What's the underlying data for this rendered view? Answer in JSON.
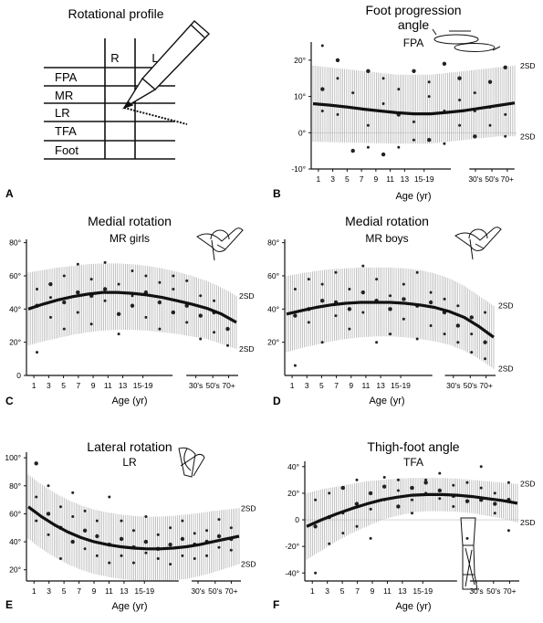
{
  "colors": {
    "ink": "#111111",
    "band": "#9a9a9a",
    "dot": "#222222"
  },
  "table": {
    "title": "Rotational profile",
    "label": "A",
    "cols": [
      "R",
      "L"
    ],
    "rows": [
      "FPA",
      "MR",
      "LR",
      "TFA",
      "Foot"
    ],
    "icon": "pencil-icon"
  },
  "chart_data": [
    {
      "type": "scatter",
      "label": "B",
      "title": "Foot progression\nangle",
      "subtitle": "FPA",
      "icon": "feet-progression-icon",
      "xlabel": "Age (yr)",
      "xticks": [
        "1",
        "3",
        "5",
        "7",
        "9",
        "11",
        "13",
        "15-19",
        "30's",
        "50's",
        "70+"
      ],
      "yticks": [
        "-10°",
        "0°",
        "10°",
        "20°"
      ],
      "ytick_values": [
        -10,
        0,
        10,
        20
      ],
      "ylim": [
        -10,
        25
      ],
      "sd_labels": [
        "2SD",
        "2SD"
      ],
      "mean": [
        8,
        7.6,
        7.1,
        6.5,
        6,
        5.5,
        5.2,
        5.2,
        5.6,
        6.1,
        6.8,
        7.5,
        8.2
      ],
      "band_upper": [
        18.5,
        18,
        17.5,
        17,
        16.5,
        16,
        16,
        16,
        16.5,
        17,
        17.5,
        18,
        18.5
      ],
      "band_lower": [
        -2.5,
        -2.6,
        -2.7,
        -2.8,
        -2.9,
        -3,
        -3,
        -3,
        -2.5,
        -2,
        -1.5,
        -1,
        -1
      ],
      "points": [
        [
          0,
          12
        ],
        [
          0,
          24
        ],
        [
          0,
          6
        ],
        [
          1,
          20
        ],
        [
          1,
          15
        ],
        [
          1,
          5
        ],
        [
          2,
          -5
        ],
        [
          2,
          11
        ],
        [
          3,
          -4
        ],
        [
          3,
          17
        ],
        [
          3,
          2
        ],
        [
          4,
          8
        ],
        [
          4,
          -6
        ],
        [
          4,
          15
        ],
        [
          5,
          12
        ],
        [
          5,
          5
        ],
        [
          5,
          -4
        ],
        [
          6,
          3
        ],
        [
          6,
          17
        ],
        [
          6,
          -2
        ],
        [
          7,
          10
        ],
        [
          7,
          -2
        ],
        [
          7,
          14
        ],
        [
          8,
          6
        ],
        [
          8,
          19
        ],
        [
          8,
          -3
        ],
        [
          9,
          9
        ],
        [
          9,
          15
        ],
        [
          9,
          2
        ],
        [
          10,
          6
        ],
        [
          10,
          -1
        ],
        [
          10,
          11
        ],
        [
          11,
          7
        ],
        [
          11,
          14
        ],
        [
          11,
          2
        ],
        [
          12,
          5
        ],
        [
          12,
          18
        ],
        [
          12,
          -1
        ]
      ]
    },
    {
      "type": "scatter",
      "label": "C",
      "title": "Medial rotation",
      "subtitle": "MR girls",
      "icon": "hip-medial-rotation-icon",
      "xlabel": "Age (yr)",
      "xticks": [
        "1",
        "3",
        "5",
        "7",
        "9",
        "11",
        "13",
        "15-19",
        "30's",
        "50's",
        "70+"
      ],
      "yticks": [
        "0",
        "20°",
        "40°",
        "60°",
        "80°"
      ],
      "ytick_values": [
        0,
        20,
        40,
        60,
        80
      ],
      "ylim": [
        0,
        82
      ],
      "sd_labels": [
        "2SD",
        "2SD"
      ],
      "mean": [
        40,
        43,
        45.5,
        47.5,
        49,
        50,
        50,
        49.5,
        48.5,
        47,
        45,
        43,
        40.5,
        37,
        32
      ],
      "band_upper": [
        62,
        63.5,
        65,
        66,
        67,
        67.5,
        67.5,
        67,
        66,
        64.5,
        62.5,
        60,
        57,
        53,
        48
      ],
      "band_lower": [
        18,
        20.5,
        22.5,
        24.5,
        26,
        27,
        27.5,
        27.5,
        27,
        26,
        25,
        23.5,
        22,
        19,
        16
      ],
      "points": [
        [
          0,
          42
        ],
        [
          0,
          14
        ],
        [
          0,
          52
        ],
        [
          1,
          55
        ],
        [
          1,
          35
        ],
        [
          1,
          47
        ],
        [
          2,
          44
        ],
        [
          2,
          28
        ],
        [
          2,
          60
        ],
        [
          3,
          50
        ],
        [
          3,
          38
        ],
        [
          3,
          67
        ],
        [
          4,
          48
        ],
        [
          4,
          31
        ],
        [
          4,
          58
        ],
        [
          5,
          52
        ],
        [
          5,
          45
        ],
        [
          5,
          68
        ],
        [
          6,
          37
        ],
        [
          6,
          55
        ],
        [
          6,
          25
        ],
        [
          7,
          42
        ],
        [
          7,
          48
        ],
        [
          7,
          63
        ],
        [
          8,
          50
        ],
        [
          8,
          35
        ],
        [
          8,
          60
        ],
        [
          9,
          44
        ],
        [
          9,
          28
        ],
        [
          9,
          56
        ],
        [
          10,
          38
        ],
        [
          10,
          52
        ],
        [
          10,
          60
        ],
        [
          11,
          42
        ],
        [
          11,
          32
        ],
        [
          11,
          57
        ],
        [
          12,
          36
        ],
        [
          12,
          48
        ],
        [
          12,
          22
        ],
        [
          13,
          38
        ],
        [
          13,
          26
        ],
        [
          13,
          45
        ],
        [
          14,
          28
        ],
        [
          14,
          35
        ],
        [
          14,
          18
        ]
      ]
    },
    {
      "type": "scatter",
      "label": "D",
      "title": "Medial rotation",
      "subtitle": "MR boys",
      "icon": "hip-medial-rotation-icon",
      "xlabel": "Age (yr)",
      "xticks": [
        "1",
        "3",
        "5",
        "7",
        "9",
        "11",
        "13",
        "15-19",
        "30's",
        "50's",
        "70+"
      ],
      "yticks": [
        "20°",
        "40°",
        "60°",
        "80°"
      ],
      "ytick_values": [
        20,
        40,
        60,
        80
      ],
      "ylim": [
        0,
        82
      ],
      "sd_labels": [
        "2SD",
        "2SD"
      ],
      "mean": [
        37,
        39,
        41,
        42.5,
        43.5,
        44,
        44,
        44,
        43.5,
        42.5,
        41,
        38.5,
        35,
        29.5,
        23
      ],
      "band_upper": [
        60,
        61.5,
        63,
        64,
        64.5,
        65,
        65,
        65,
        64.5,
        63.5,
        61.5,
        58.5,
        54,
        48,
        42
      ],
      "band_lower": [
        14,
        16.5,
        18.5,
        20.5,
        22,
        23,
        23.5,
        23.5,
        23,
        22,
        20.5,
        18.5,
        15,
        10,
        4
      ],
      "points": [
        [
          0,
          36
        ],
        [
          0,
          6
        ],
        [
          0,
          52
        ],
        [
          1,
          40
        ],
        [
          1,
          32
        ],
        [
          1,
          58
        ],
        [
          2,
          45
        ],
        [
          2,
          20
        ],
        [
          2,
          55
        ],
        [
          3,
          44
        ],
        [
          3,
          36
        ],
        [
          3,
          62
        ],
        [
          4,
          40
        ],
        [
          4,
          28
        ],
        [
          4,
          52
        ],
        [
          5,
          50
        ],
        [
          5,
          38
        ],
        [
          5,
          66
        ],
        [
          6,
          45
        ],
        [
          6,
          20
        ],
        [
          6,
          58
        ],
        [
          7,
          40
        ],
        [
          7,
          48
        ],
        [
          7,
          25
        ],
        [
          8,
          46
        ],
        [
          8,
          34
        ],
        [
          8,
          55
        ],
        [
          9,
          42
        ],
        [
          9,
          22
        ],
        [
          9,
          62
        ],
        [
          10,
          44
        ],
        [
          10,
          30
        ],
        [
          10,
          50
        ],
        [
          11,
          38
        ],
        [
          11,
          46
        ],
        [
          11,
          25
        ],
        [
          12,
          30
        ],
        [
          12,
          42
        ],
        [
          12,
          20
        ],
        [
          13,
          35
        ],
        [
          13,
          14
        ],
        [
          13,
          25
        ],
        [
          14,
          20
        ],
        [
          14,
          38
        ],
        [
          14,
          10
        ]
      ]
    },
    {
      "type": "scatter",
      "label": "E",
      "title": "Lateral rotation",
      "subtitle": "LR",
      "icon": "hip-lateral-rotation-icon",
      "xlabel": "Age (yr)",
      "xticks": [
        "1",
        "3",
        "5",
        "7",
        "9",
        "11",
        "13",
        "15-19",
        "30's",
        "50's",
        "70+"
      ],
      "yticks": [
        "20°",
        "40°",
        "60°",
        "80°",
        "100°"
      ],
      "ytick_values": [
        20,
        40,
        60,
        80,
        100
      ],
      "ylim": [
        12,
        104
      ],
      "sd_labels": [
        "2SD",
        "2SD"
      ],
      "mean": [
        65,
        58,
        52,
        47,
        43,
        40,
        38,
        36.5,
        35.5,
        35,
        35,
        35.5,
        36.5,
        38,
        40,
        42,
        44
      ],
      "band_upper": [
        88,
        81,
        75,
        70,
        66,
        63,
        61,
        59.5,
        58.5,
        58,
        58,
        58.5,
        59.5,
        60.5,
        62,
        63,
        64
      ],
      "band_lower": [
        42,
        35,
        29,
        24,
        20,
        17,
        15,
        13.5,
        12.5,
        12,
        12,
        12.5,
        13.5,
        15.5,
        18,
        21,
        24
      ],
      "points": [
        [
          0,
          96
        ],
        [
          0,
          55
        ],
        [
          0,
          72
        ],
        [
          1,
          60
        ],
        [
          1,
          45
        ],
        [
          1,
          80
        ],
        [
          2,
          50
        ],
        [
          2,
          65
        ],
        [
          2,
          28
        ],
        [
          3,
          40
        ],
        [
          3,
          58
        ],
        [
          3,
          75
        ],
        [
          4,
          48
        ],
        [
          4,
          35
        ],
        [
          4,
          62
        ],
        [
          5,
          44
        ],
        [
          5,
          30
        ],
        [
          5,
          55
        ],
        [
          6,
          38
        ],
        [
          6,
          72
        ],
        [
          6,
          25
        ],
        [
          7,
          42
        ],
        [
          7,
          30
        ],
        [
          7,
          55
        ],
        [
          8,
          36
        ],
        [
          8,
          25
        ],
        [
          8,
          48
        ],
        [
          9,
          40
        ],
        [
          9,
          32
        ],
        [
          9,
          58
        ],
        [
          10,
          35
        ],
        [
          10,
          28
        ],
        [
          10,
          45
        ],
        [
          11,
          38
        ],
        [
          11,
          24
        ],
        [
          11,
          50
        ],
        [
          12,
          42
        ],
        [
          12,
          30
        ],
        [
          12,
          55
        ],
        [
          13,
          38
        ],
        [
          13,
          46
        ],
        [
          13,
          28
        ],
        [
          14,
          40
        ],
        [
          14,
          30
        ],
        [
          14,
          48
        ],
        [
          15,
          44
        ],
        [
          15,
          36
        ],
        [
          15,
          56
        ],
        [
          16,
          42
        ],
        [
          16,
          50
        ],
        [
          16,
          34
        ]
      ]
    },
    {
      "type": "scatter",
      "label": "F",
      "title": "Thigh-foot angle",
      "subtitle": "TFA",
      "icon": "leg-thigh-foot-icon",
      "xlabel": "Age (yr)",
      "xticks": [
        "1",
        "3",
        "5",
        "7",
        "9",
        "11",
        "13",
        "15-19",
        "30's",
        "50's",
        "70+"
      ],
      "yticks": [
        "-40°",
        "-20°",
        "0",
        "20°",
        "40°"
      ],
      "ytick_values": [
        -40,
        -20,
        0,
        20,
        40
      ],
      "ylim": [
        -46,
        44
      ],
      "sd_labels": [
        "2SD",
        "2SD"
      ],
      "mean": [
        -5,
        0,
        4.5,
        8.5,
        12,
        15,
        17,
        18.5,
        19,
        19,
        18.5,
        17.5,
        16,
        14.5,
        12.5
      ],
      "band_upper": [
        20,
        23,
        25,
        27,
        29,
        30,
        31,
        31.5,
        31.5,
        31.5,
        31,
        30,
        29,
        28,
        27
      ],
      "band_lower": [
        -30,
        -23,
        -16,
        -10,
        -5,
        0,
        3,
        5.5,
        6.5,
        6.5,
        6,
        5,
        3,
        1,
        -2
      ],
      "points": [
        [
          0,
          -5
        ],
        [
          0,
          -40
        ],
        [
          0,
          15
        ],
        [
          1,
          2
        ],
        [
          1,
          20
        ],
        [
          1,
          -18
        ],
        [
          2,
          24
        ],
        [
          2,
          5
        ],
        [
          2,
          -10
        ],
        [
          3,
          12
        ],
        [
          3,
          30
        ],
        [
          3,
          -5
        ],
        [
          4,
          20
        ],
        [
          4,
          8
        ],
        [
          4,
          -14
        ],
        [
          5,
          25
        ],
        [
          5,
          15
        ],
        [
          5,
          32
        ],
        [
          6,
          10
        ],
        [
          6,
          30
        ],
        [
          6,
          22
        ],
        [
          7,
          24
        ],
        [
          7,
          15
        ],
        [
          7,
          5
        ],
        [
          8,
          28
        ],
        [
          8,
          20
        ],
        [
          8,
          30
        ],
        [
          9,
          22
        ],
        [
          9,
          16
        ],
        [
          9,
          35
        ],
        [
          10,
          18
        ],
        [
          10,
          26
        ],
        [
          10,
          10
        ],
        [
          11,
          14
        ],
        [
          11,
          28
        ],
        [
          11,
          -14
        ],
        [
          12,
          15
        ],
        [
          12,
          24
        ],
        [
          12,
          40
        ],
        [
          13,
          12
        ],
        [
          13,
          20
        ],
        [
          13,
          5
        ],
        [
          14,
          15
        ],
        [
          14,
          28
        ],
        [
          14,
          -8
        ]
      ]
    }
  ]
}
